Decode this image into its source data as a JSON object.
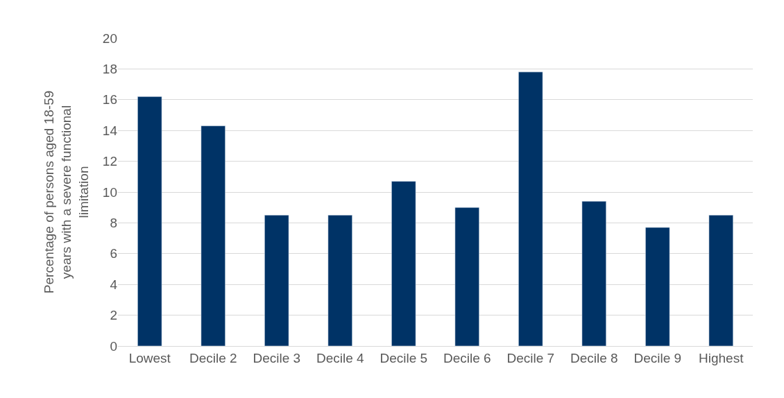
{
  "chart_data": {
    "type": "bar",
    "ylabel": "Percentage of persons aged 18-59 years with a severe functional limitation",
    "categories": [
      "Lowest",
      "Decile 2",
      "Decile 3",
      "Decile 4",
      "Decile 5",
      "Decile 6",
      "Decile 7",
      "Decile 8",
      "Decile 9",
      "Highest"
    ],
    "values": [
      16.2,
      14.3,
      8.5,
      8.5,
      10.7,
      9.0,
      17.8,
      9.4,
      7.7,
      8.5
    ],
    "color": "#003366",
    "ylim": [
      0,
      20
    ],
    "yticks": [
      0,
      2,
      4,
      6,
      8,
      10,
      12,
      14,
      16,
      18,
      20
    ],
    "grid": "y",
    "legend": false
  }
}
